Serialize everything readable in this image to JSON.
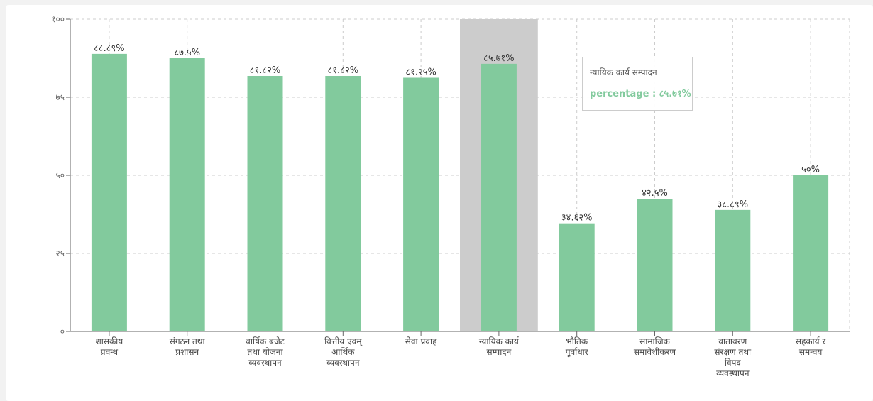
{
  "chart_data": {
    "type": "bar",
    "categories": [
      [
        "शासकीय",
        "प्रवन्ध"
      ],
      [
        "संगठन तथा",
        "प्रशासन"
      ],
      [
        "वार्षिक बजेट",
        "तथा योजना",
        "व्यवस्थापन"
      ],
      [
        "वित्तीय एवम्",
        "आर्थिक",
        "व्यवस्थापन"
      ],
      [
        "सेवा प्रवाह"
      ],
      [
        "न्यायिक कार्य",
        "सम्पादन"
      ],
      [
        "भौतिक",
        "पूर्वाधार"
      ],
      [
        "सामाजिक",
        "समावेशीकरण"
      ],
      [
        "वातावरण",
        "संरक्षण तथा",
        "विपद",
        "व्यवस्थापन"
      ],
      [
        "सहकार्य र",
        "समन्वय"
      ]
    ],
    "values": [
      88.89,
      87.5,
      81.82,
      81.82,
      81.25,
      85.71,
      34.62,
      42.5,
      38.89,
      50
    ],
    "value_labels": [
      "८८.८९%",
      "८७.५%",
      "८१.८२%",
      "८१.८२%",
      "८१.२५%",
      "८५.७१%",
      "३४.६२%",
      "४२.५%",
      "३८.८९%",
      "५०%"
    ],
    "y_ticks": [
      0,
      25,
      50,
      75,
      100
    ],
    "y_tick_labels": [
      "०",
      "२५",
      "५०",
      "७५",
      "१००"
    ],
    "ylim": [
      0,
      100
    ],
    "grid": true,
    "bar_color": "#82ca9d",
    "highlight_color": "#cccccc",
    "highlighted_index": 5
  },
  "tooltip": {
    "title": "न्यायिक कार्य सम्पादन",
    "row": "percentage : ८५.७१%"
  }
}
